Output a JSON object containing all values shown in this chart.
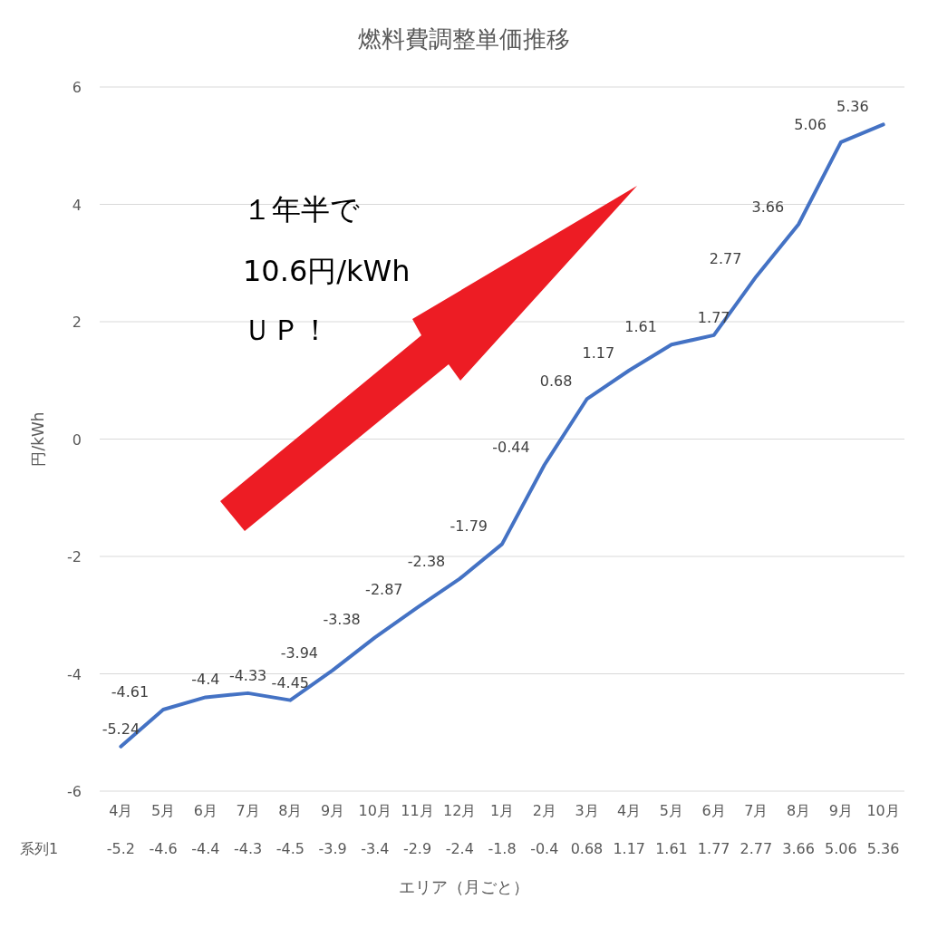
{
  "chart_data": {
    "type": "line",
    "title": "燃料費調整単価推移",
    "xlabel": "エリア（月ごと）",
    "ylabel": "円/kWh",
    "categories": [
      "4月",
      "5月",
      "6月",
      "7月",
      "8月",
      "9月",
      "10月",
      "11月",
      "12月",
      "1月",
      "2月",
      "3月",
      "4月",
      "5月",
      "6月",
      "7月",
      "8月",
      "9月",
      "10月"
    ],
    "series": [
      {
        "name": "系列1",
        "color": "#4472c4",
        "values": [
          -5.24,
          -4.61,
          -4.4,
          -4.33,
          -4.45,
          -3.94,
          -3.38,
          -2.87,
          -2.38,
          -1.79,
          -0.44,
          0.68,
          1.17,
          1.61,
          1.77,
          2.77,
          3.66,
          5.06,
          5.36
        ],
        "value_labels": [
          "-5.24",
          "-4.61",
          "-4.4",
          "-4.33",
          "-4.45",
          "-3.94",
          "-3.38",
          "-2.87",
          "-2.38",
          "-1.79",
          "-0.44",
          "0.68",
          "1.17",
          "1.61",
          "1.77",
          "2.77",
          "3.66",
          "5.06",
          "5.36"
        ]
      }
    ],
    "ylim": [
      -6,
      6
    ],
    "yticks": [
      -6,
      -4,
      -2,
      0,
      2,
      4,
      6
    ],
    "grid": "y",
    "line_style": "solid",
    "annotations": [
      "１年半で",
      "10.6円/kWh",
      "ＵＰ！",
      "-5.2",
      "-4.6",
      "-4.4",
      "-4.3",
      "-4.5",
      "-3.9",
      "-3.4",
      "-2.9",
      "-2.4",
      "-1.8",
      "-0.4",
      "0.68",
      "1.17",
      "1.61",
      "1.77",
      "2.77",
      "3.66",
      "5.06",
      "5.36"
    ]
  }
}
